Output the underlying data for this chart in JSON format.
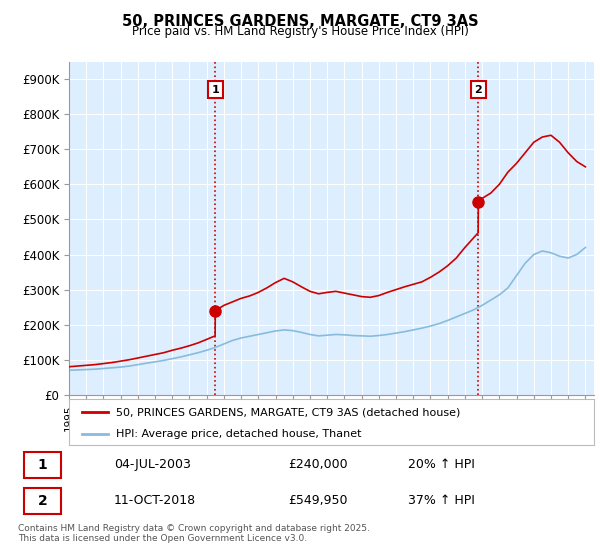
{
  "title": "50, PRINCES GARDENS, MARGATE, CT9 3AS",
  "subtitle": "Price paid vs. HM Land Registry's House Price Index (HPI)",
  "ylim": [
    0,
    950000
  ],
  "yticks": [
    0,
    100000,
    200000,
    300000,
    400000,
    500000,
    600000,
    700000,
    800000,
    900000
  ],
  "ytick_labels": [
    "£0",
    "£100K",
    "£200K",
    "£300K",
    "£400K",
    "£500K",
    "£600K",
    "£700K",
    "£800K",
    "£900K"
  ],
  "sale1_date": 2003.5,
  "sale1_price": 240000,
  "sale1_label": "1",
  "sale1_text": "04-JUL-2003",
  "sale1_pct": "20% ↑ HPI",
  "sale2_date": 2018.78,
  "sale2_price": 549950,
  "sale2_label": "2",
  "sale2_text": "11-OCT-2018",
  "sale2_pct": "37% ↑ HPI",
  "line_color_red": "#cc0000",
  "line_color_blue": "#88bbdd",
  "plot_bg_color": "#ddeeff",
  "background_color": "#ffffff",
  "grid_color": "#ffffff",
  "legend_label_red": "50, PRINCES GARDENS, MARGATE, CT9 3AS (detached house)",
  "legend_label_blue": "HPI: Average price, detached house, Thanet",
  "footnote": "Contains HM Land Registry data © Crown copyright and database right 2025.\nThis data is licensed under the Open Government Licence v3.0.",
  "xmin": 1995,
  "xmax": 2025.5,
  "years_hpi": [
    1995,
    1995.5,
    1996,
    1996.5,
    1997,
    1997.5,
    1998,
    1998.5,
    1999,
    1999.5,
    2000,
    2000.5,
    2001,
    2001.5,
    2002,
    2002.5,
    2003,
    2003.5,
    2004,
    2004.5,
    2005,
    2005.5,
    2006,
    2006.5,
    2007,
    2007.5,
    2008,
    2008.5,
    2009,
    2009.5,
    2010,
    2010.5,
    2011,
    2011.5,
    2012,
    2012.5,
    2013,
    2013.5,
    2014,
    2014.5,
    2015,
    2015.5,
    2016,
    2016.5,
    2017,
    2017.5,
    2018,
    2018.5,
    2019,
    2019.5,
    2020,
    2020.5,
    2021,
    2021.5,
    2022,
    2022.5,
    2023,
    2023.5,
    2024,
    2024.5,
    2025
  ],
  "hpi_values": [
    70000,
    71000,
    72000,
    73000,
    75000,
    77000,
    79000,
    82000,
    86000,
    90000,
    94000,
    98000,
    103000,
    108000,
    114000,
    120000,
    127000,
    135000,
    145000,
    155000,
    162000,
    167000,
    172000,
    177000,
    182000,
    185000,
    183000,
    178000,
    172000,
    168000,
    170000,
    172000,
    171000,
    169000,
    168000,
    167000,
    169000,
    172000,
    176000,
    180000,
    185000,
    190000,
    196000,
    203000,
    212000,
    222000,
    232000,
    242000,
    255000,
    270000,
    285000,
    305000,
    340000,
    375000,
    400000,
    410000,
    405000,
    395000,
    390000,
    400000,
    420000
  ],
  "years_red": [
    1995,
    1995.5,
    1996,
    1996.5,
    1997,
    1997.5,
    1998,
    1998.5,
    1999,
    1999.5,
    2000,
    2000.5,
    2001,
    2001.5,
    2002,
    2002.5,
    2003,
    2003.49,
    2003.5,
    2004,
    2004.5,
    2005,
    2005.5,
    2006,
    2006.5,
    2007,
    2007.5,
    2008,
    2008.5,
    2009,
    2009.5,
    2010,
    2010.5,
    2011,
    2011.5,
    2012,
    2012.5,
    2013,
    2013.5,
    2014,
    2014.5,
    2015,
    2015.5,
    2016,
    2016.5,
    2017,
    2017.5,
    2018,
    2018.77,
    2018.78,
    2019,
    2019.5,
    2020,
    2020.5,
    2021,
    2021.5,
    2022,
    2022.5,
    2023,
    2023.5,
    2024,
    2024.5,
    2025
  ],
  "red_values": [
    80000,
    82000,
    84000,
    86000,
    89000,
    92000,
    96000,
    100000,
    105000,
    110000,
    115000,
    120000,
    127000,
    133000,
    140000,
    148000,
    158000,
    168000,
    240000,
    255000,
    265000,
    275000,
    282000,
    292000,
    305000,
    320000,
    332000,
    322000,
    308000,
    295000,
    288000,
    292000,
    295000,
    290000,
    285000,
    280000,
    278000,
    283000,
    292000,
    300000,
    308000,
    315000,
    322000,
    335000,
    350000,
    368000,
    390000,
    420000,
    462000,
    549950,
    560000,
    575000,
    600000,
    635000,
    660000,
    690000,
    720000,
    735000,
    740000,
    720000,
    690000,
    665000,
    650000
  ]
}
